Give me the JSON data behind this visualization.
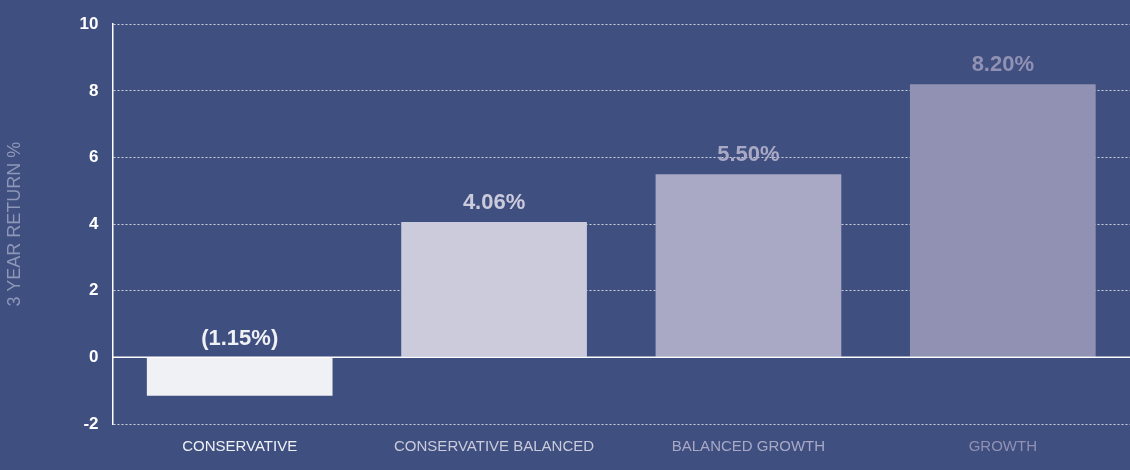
{
  "chart_data": {
    "type": "bar",
    "categories": [
      "CONSERVATIVE",
      "CONSERVATIVE BALANCED",
      "BALANCED GROWTH",
      "GROWTH"
    ],
    "values": [
      -1.15,
      4.06,
      5.5,
      8.2
    ],
    "colors": [
      "#f0f1f5",
      "#cbcbdc",
      "#a9a9c5",
      "#9191b3"
    ],
    "value_labels": [
      "(1.15%)",
      "4.06%",
      "5.50%",
      "8.20%"
    ],
    "ylabel": "3 YEAR RETURN %",
    "ylim": [
      -2,
      10
    ],
    "yticks": [
      -2,
      0,
      2,
      4,
      6,
      8,
      10
    ],
    "grid": "y",
    "legend": false
  }
}
